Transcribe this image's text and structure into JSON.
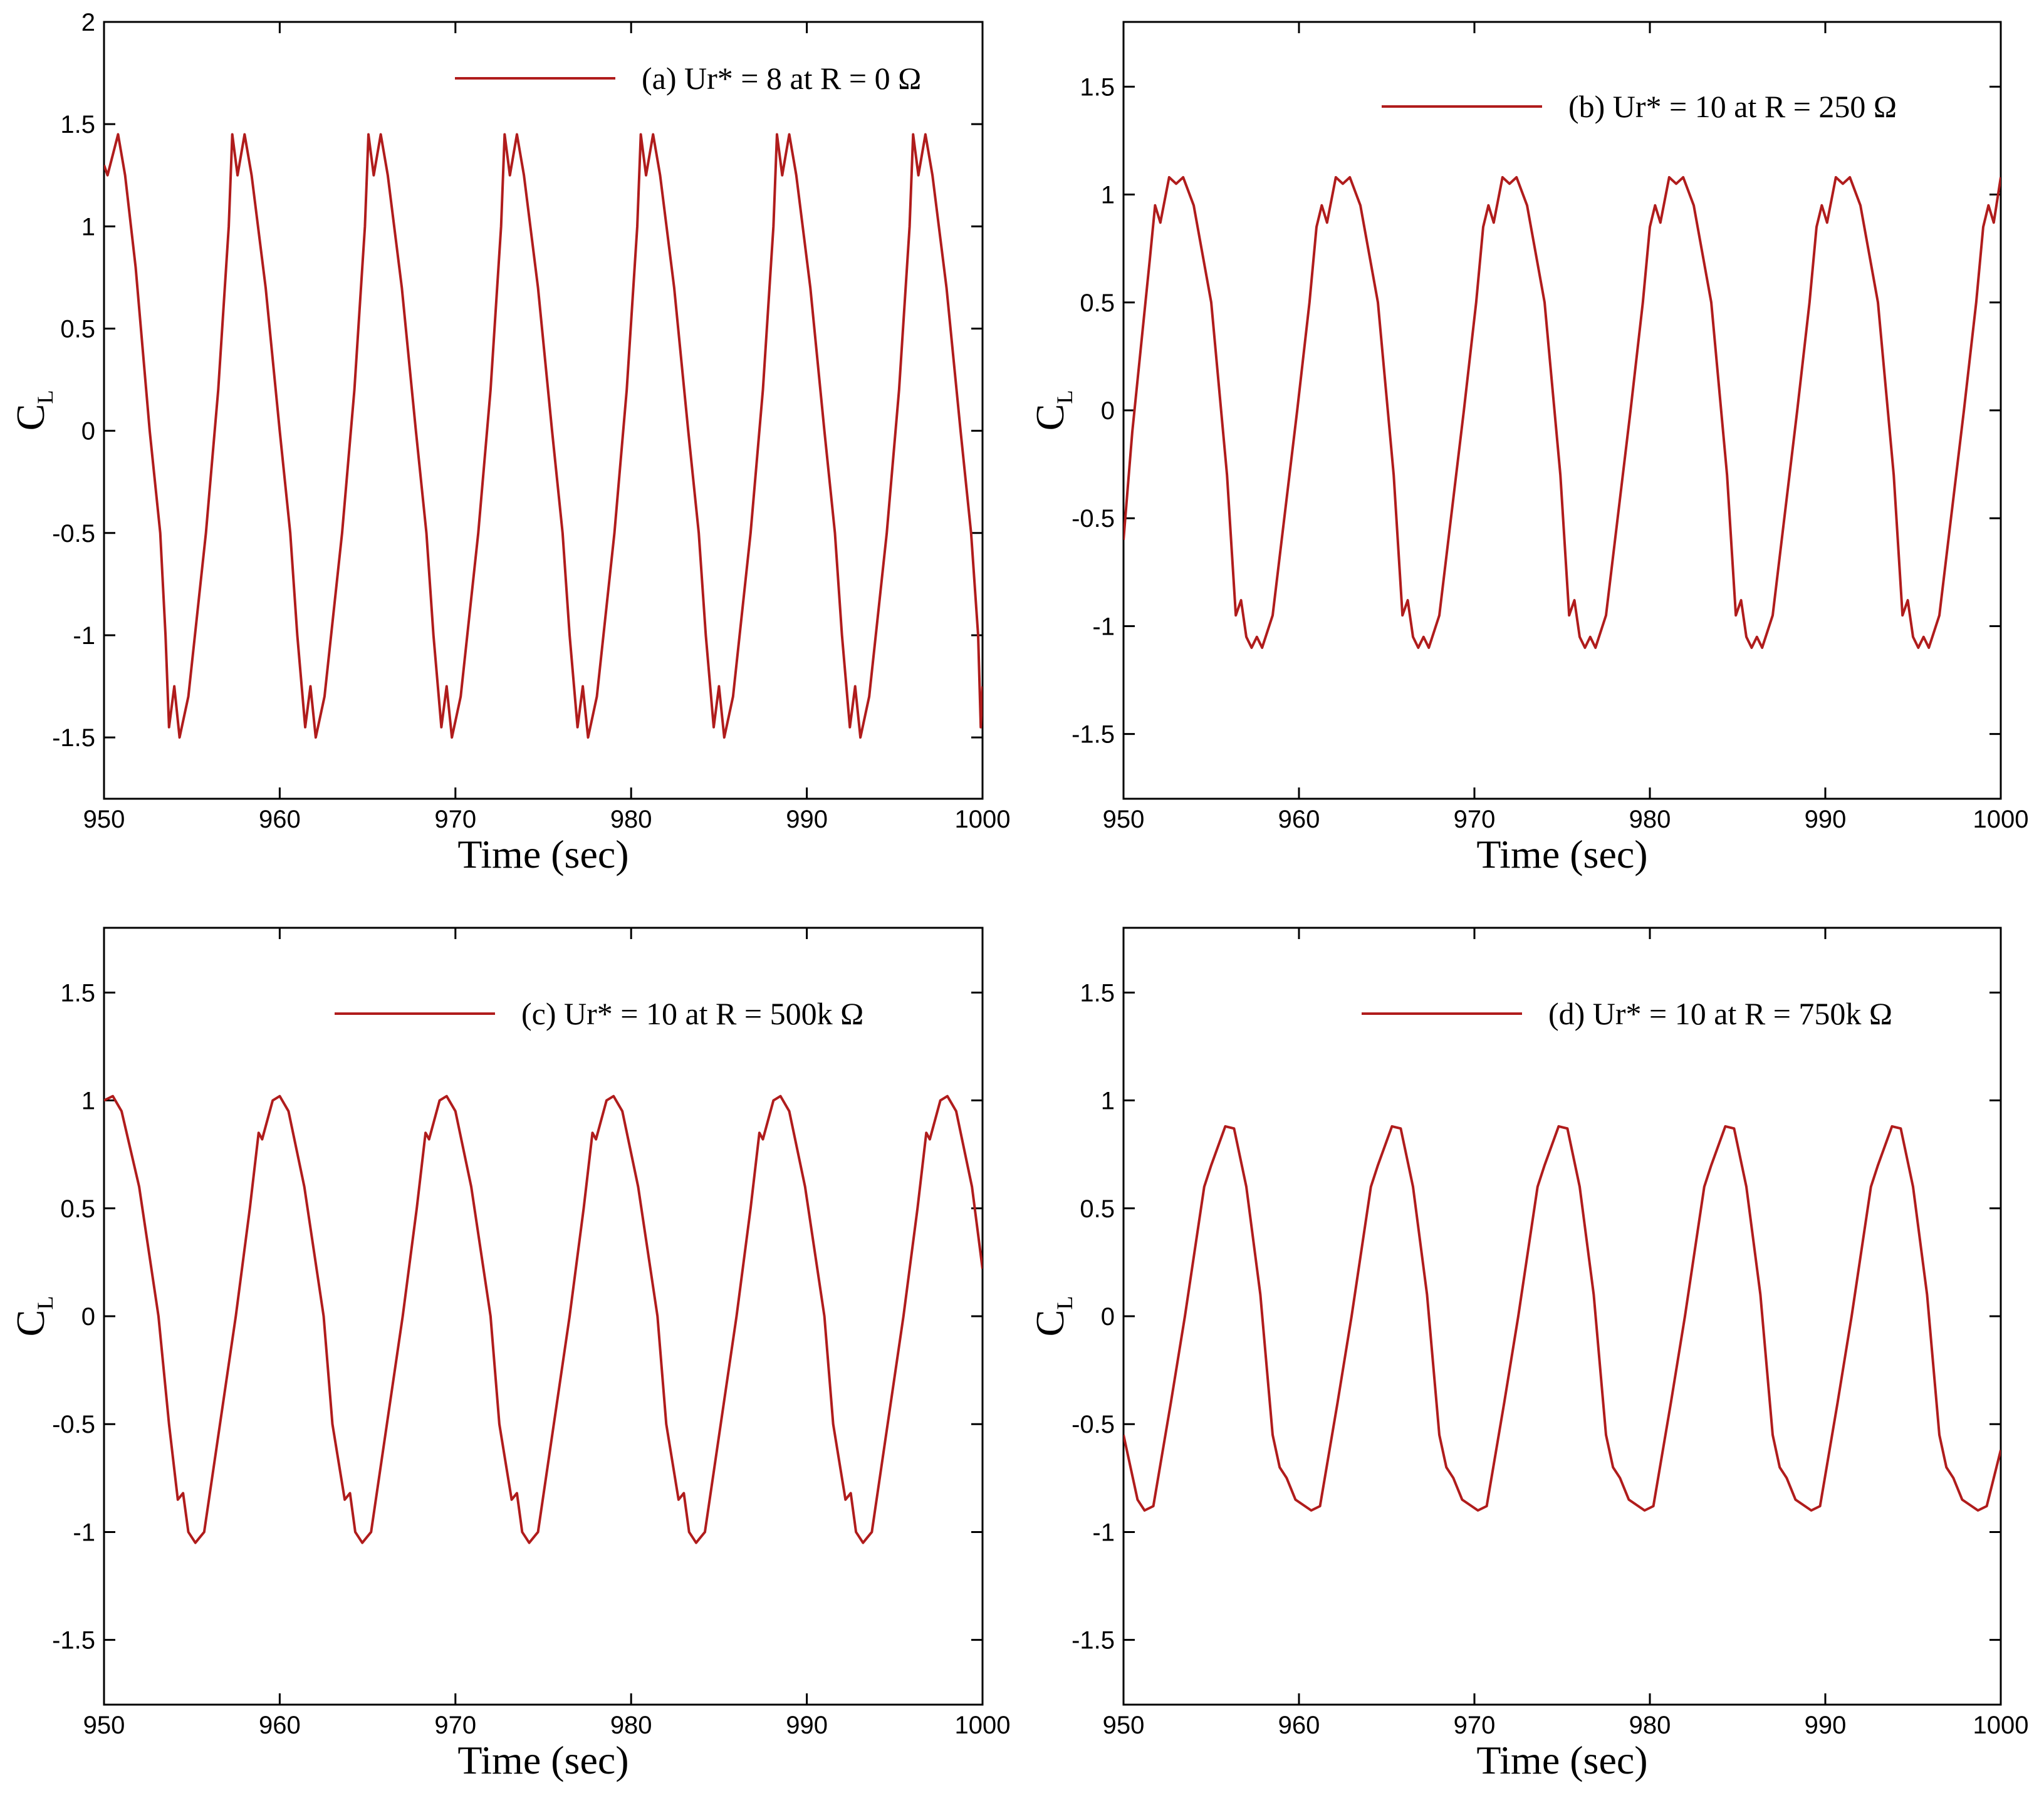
{
  "chart_data": [
    {
      "type": "line",
      "x_label": "Time (sec)",
      "y_label": "C",
      "y_label_subscript": "L",
      "xlim": [
        950,
        1000
      ],
      "xticks": [
        950,
        960,
        970,
        980,
        990,
        1000
      ],
      "ylim": [
        -1.8,
        2
      ],
      "yticks": [
        -1.5,
        -1,
        -0.5,
        0,
        0.5,
        1,
        1.5,
        2
      ],
      "x": [
        950,
        950.2,
        950.5,
        950.8,
        951.2,
        951.8,
        952.6,
        953.2,
        953.5,
        953.7,
        954.0,
        954.3,
        954.8,
        955.8,
        956.5,
        957.1,
        957.3,
        957.6,
        958.0,
        958.4,
        959.2,
        960.0,
        960.6,
        961.0,
        961.45,
        961.75,
        962.05,
        962.55,
        963.55,
        964.25,
        964.85,
        965.05,
        965.35,
        965.75,
        966.15,
        966.95,
        967.75,
        968.35,
        968.75,
        969.2,
        969.5,
        969.8,
        970.3,
        971.3,
        972.0,
        972.6,
        972.8,
        973.1,
        973.5,
        973.9,
        974.7,
        975.5,
        976.1,
        976.5,
        976.95,
        977.25,
        977.55,
        978.05,
        979.05,
        979.75,
        980.35,
        980.55,
        980.85,
        981.25,
        981.65,
        982.45,
        983.25,
        983.85,
        984.25,
        984.7,
        985.0,
        985.3,
        985.8,
        986.8,
        987.5,
        988.1,
        988.3,
        988.6,
        989.0,
        989.4,
        990.2,
        991.0,
        991.6,
        992.0,
        992.45,
        992.75,
        993.05,
        993.55,
        994.55,
        995.25,
        995.85,
        996.05,
        996.35,
        996.75,
        997.15,
        997.95,
        998.75,
        999.35,
        999.75,
        999.9,
        1000
      ],
      "series": [
        {
          "name": "(a) Ur* = 8 at R = 0 Ω",
          "color": "#b01c1c",
          "values": [
            1.3,
            1.25,
            1.35,
            1.45,
            1.25,
            0.8,
            0,
            -0.5,
            -1.0,
            -1.45,
            -1.25,
            -1.5,
            -1.3,
            -0.5,
            0.2,
            1.0,
            1.45,
            1.25,
            1.45,
            1.25,
            0.7,
            0,
            -0.5,
            -1.0,
            -1.45,
            -1.25,
            -1.5,
            -1.3,
            -0.5,
            0.2,
            1.0,
            1.45,
            1.25,
            1.45,
            1.25,
            0.7,
            0,
            -0.5,
            -1.0,
            -1.45,
            -1.25,
            -1.5,
            -1.3,
            -0.5,
            0.2,
            1.0,
            1.45,
            1.25,
            1.45,
            1.25,
            0.7,
            0,
            -0.5,
            -1.0,
            -1.45,
            -1.25,
            -1.5,
            -1.3,
            -0.5,
            0.2,
            1.0,
            1.45,
            1.25,
            1.45,
            1.25,
            0.7,
            0,
            -0.5,
            -1.0,
            -1.45,
            -1.25,
            -1.5,
            -1.3,
            -0.5,
            0.2,
            1.0,
            1.45,
            1.25,
            1.45,
            1.25,
            0.7,
            0,
            -0.5,
            -1.0,
            -1.45,
            -1.25,
            -1.5,
            -1.3,
            -0.5,
            0.2,
            1.0,
            1.45,
            1.25,
            1.45,
            1.25,
            0.7,
            0,
            -0.5,
            -1.0,
            -1.45,
            -1.25
          ]
        }
      ]
    },
    {
      "type": "line",
      "x_label": "Time (sec)",
      "y_label": "C",
      "y_label_subscript": "L",
      "xlim": [
        950,
        1000
      ],
      "xticks": [
        950,
        960,
        970,
        980,
        990,
        1000
      ],
      "ylim": [
        -1.8,
        1.8
      ],
      "yticks": [
        -1.5,
        -1,
        -0.5,
        0,
        0.5,
        1,
        1.5
      ],
      "x": [
        950,
        950.5,
        951,
        951.5,
        951.8,
        952.1,
        952.6,
        953.0,
        953.4,
        954.0,
        955.0,
        955.9,
        956.4,
        956.7,
        957.0,
        957.3,
        957.6,
        957.9,
        958.5,
        959.9,
        960.6,
        961.0,
        961.3,
        961.6,
        962.1,
        962.5,
        962.9,
        963.5,
        964.5,
        965.4,
        965.9,
        966.2,
        966.5,
        966.8,
        967.1,
        967.4,
        968.0,
        969.4,
        970.1,
        970.5,
        970.8,
        971.1,
        971.6,
        972.0,
        972.4,
        973.0,
        974.0,
        974.9,
        975.4,
        975.7,
        976.0,
        976.3,
        976.6,
        976.9,
        977.5,
        978.9,
        979.6,
        980.0,
        980.3,
        980.6,
        981.1,
        981.5,
        981.9,
        982.5,
        983.5,
        984.4,
        984.9,
        985.2,
        985.5,
        985.8,
        986.1,
        986.4,
        987.0,
        988.4,
        989.1,
        989.5,
        989.8,
        990.1,
        990.6,
        991.0,
        991.4,
        992.0,
        993.0,
        993.9,
        994.4,
        994.7,
        995.0,
        995.3,
        995.6,
        995.9,
        996.5,
        997.9,
        998.6,
        999.0,
        999.3,
        999.6,
        1000
      ],
      "series": [
        {
          "name": "(b) Ur* = 10 at R = 250 Ω",
          "color": "#b01c1c",
          "values": [
            -0.6,
            -0.1,
            0.3,
            0.7,
            0.95,
            0.87,
            1.08,
            1.05,
            1.08,
            0.95,
            0.5,
            -0.3,
            -0.95,
            -0.88,
            -1.05,
            -1.1,
            -1.05,
            -1.1,
            -0.95,
            0,
            0.5,
            0.85,
            0.95,
            0.87,
            1.08,
            1.05,
            1.08,
            0.95,
            0.5,
            -0.3,
            -0.95,
            -0.88,
            -1.05,
            -1.1,
            -1.05,
            -1.1,
            -0.95,
            0,
            0.5,
            0.85,
            0.95,
            0.87,
            1.08,
            1.05,
            1.08,
            0.95,
            0.5,
            -0.3,
            -0.95,
            -0.88,
            -1.05,
            -1.1,
            -1.05,
            -1.1,
            -0.95,
            0,
            0.5,
            0.85,
            0.95,
            0.87,
            1.08,
            1.05,
            1.08,
            0.95,
            0.5,
            -0.3,
            -0.95,
            -0.88,
            -1.05,
            -1.1,
            -1.05,
            -1.1,
            -0.95,
            0,
            0.5,
            0.85,
            0.95,
            0.87,
            1.08,
            1.05,
            1.08,
            0.95,
            0.5,
            -0.3,
            -0.95,
            -0.88,
            -1.05,
            -1.1,
            -1.05,
            -1.1,
            -0.95,
            0,
            0.5,
            0.85,
            0.95,
            0.87,
            1.08
          ]
        }
      ]
    },
    {
      "type": "line",
      "x_label": "Time (sec)",
      "y_label": "C",
      "y_label_subscript": "L",
      "xlim": [
        950,
        1000
      ],
      "xticks": [
        950,
        960,
        970,
        980,
        990,
        1000
      ],
      "ylim": [
        -1.8,
        1.8
      ],
      "yticks": [
        -1.5,
        -1,
        -0.5,
        0,
        0.5,
        1,
        1.5
      ],
      "x": [
        950,
        950.5,
        951,
        952,
        953.1,
        953.7,
        954.2,
        954.5,
        954.8,
        955.2,
        955.7,
        957.5,
        958.3,
        958.8,
        959.0,
        959.6,
        960.0,
        960.5,
        961.4,
        962.5,
        963.0,
        963.7,
        964.0,
        964.3,
        964.7,
        965.2,
        967.0,
        967.8,
        968.3,
        968.5,
        969.1,
        969.5,
        970.0,
        970.9,
        972.0,
        972.5,
        973.2,
        973.5,
        973.8,
        974.2,
        974.7,
        976.5,
        977.3,
        977.8,
        978.0,
        978.6,
        979.0,
        979.5,
        980.4,
        981.5,
        982.0,
        982.7,
        983.0,
        983.3,
        983.7,
        984.2,
        986.0,
        986.8,
        987.3,
        987.5,
        988.1,
        988.5,
        989.0,
        989.9,
        991.0,
        991.5,
        992.2,
        992.5,
        992.8,
        993.2,
        993.7,
        995.5,
        996.3,
        996.8,
        997.0,
        997.6,
        998.0,
        998.5,
        999.4,
        1000
      ],
      "series": [
        {
          "name": "(c) Ur* = 10 at R = 500k  Ω",
          "color": "#b01c1c",
          "values": [
            1.0,
            1.02,
            0.95,
            0.6,
            0,
            -0.5,
            -0.85,
            -0.82,
            -1.0,
            -1.05,
            -1.0,
            0,
            0.5,
            0.85,
            0.82,
            1.0,
            1.02,
            0.95,
            0.6,
            0,
            -0.5,
            -0.85,
            -0.82,
            -1.0,
            -1.05,
            -1.0,
            0,
            0.5,
            0.85,
            0.82,
            1.0,
            1.02,
            0.95,
            0.6,
            0,
            -0.5,
            -0.85,
            -0.82,
            -1.0,
            -1.05,
            -1.0,
            0,
            0.5,
            0.85,
            0.82,
            1.0,
            1.02,
            0.95,
            0.6,
            0,
            -0.5,
            -0.85,
            -0.82,
            -1.0,
            -1.05,
            -1.0,
            0,
            0.5,
            0.85,
            0.82,
            1.0,
            1.02,
            0.95,
            0.6,
            0,
            -0.5,
            -0.85,
            -0.82,
            -1.0,
            -1.05,
            -1.0,
            0,
            0.5,
            0.85,
            0.82,
            1.0,
            1.02,
            0.95,
            0.6,
            0.22
          ]
        }
      ]
    },
    {
      "type": "line",
      "x_label": "Time (sec)",
      "y_label": "C",
      "y_label_subscript": "L",
      "xlim": [
        950,
        1000
      ],
      "xticks": [
        950,
        960,
        970,
        980,
        990,
        1000
      ],
      "ylim": [
        -1.8,
        1.8
      ],
      "yticks": [
        -1.5,
        -1,
        -0.5,
        0,
        0.5,
        1,
        1.5
      ],
      "x": [
        950,
        950.4,
        950.8,
        951.2,
        951.7,
        952.7,
        953.5,
        954.6,
        955.0,
        955.8,
        956.3,
        957.0,
        957.8,
        958.5,
        958.9,
        959.3,
        959.8,
        960.7,
        961.2,
        962.2,
        963.0,
        964.1,
        964.5,
        965.3,
        965.8,
        966.5,
        967.3,
        968.0,
        968.4,
        968.8,
        969.3,
        970.2,
        970.7,
        971.7,
        972.5,
        973.6,
        974.0,
        974.8,
        975.3,
        976.0,
        976.8,
        977.5,
        977.9,
        978.3,
        978.8,
        979.7,
        980.2,
        981.2,
        982.0,
        983.1,
        983.5,
        984.3,
        984.8,
        985.5,
        986.3,
        987.0,
        987.4,
        987.8,
        988.3,
        989.2,
        989.7,
        990.7,
        991.5,
        992.6,
        993.0,
        993.8,
        994.3,
        995.0,
        995.8,
        996.5,
        996.9,
        997.3,
        997.8,
        998.7,
        999.2,
        1000
      ],
      "series": [
        {
          "name": "(d) Ur* = 10 at R = 750k Ω",
          "color": "#b01c1c",
          "values": [
            -0.55,
            -0.7,
            -0.85,
            -0.9,
            -0.88,
            -0.4,
            0,
            0.6,
            0.7,
            0.88,
            0.87,
            0.6,
            0.1,
            -0.55,
            -0.7,
            -0.75,
            -0.85,
            -0.9,
            -0.88,
            -0.4,
            0,
            0.6,
            0.7,
            0.88,
            0.87,
            0.6,
            0.1,
            -0.55,
            -0.7,
            -0.75,
            -0.85,
            -0.9,
            -0.88,
            -0.4,
            0,
            0.6,
            0.7,
            0.88,
            0.87,
            0.6,
            0.1,
            -0.55,
            -0.7,
            -0.75,
            -0.85,
            -0.9,
            -0.88,
            -0.4,
            0,
            0.6,
            0.7,
            0.88,
            0.87,
            0.6,
            0.1,
            -0.55,
            -0.7,
            -0.75,
            -0.85,
            -0.9,
            -0.88,
            -0.4,
            0,
            0.6,
            0.7,
            0.88,
            0.87,
            0.6,
            0.1,
            -0.55,
            -0.7,
            -0.75,
            -0.85,
            -0.9,
            -0.88,
            -0.62
          ]
        }
      ]
    }
  ]
}
